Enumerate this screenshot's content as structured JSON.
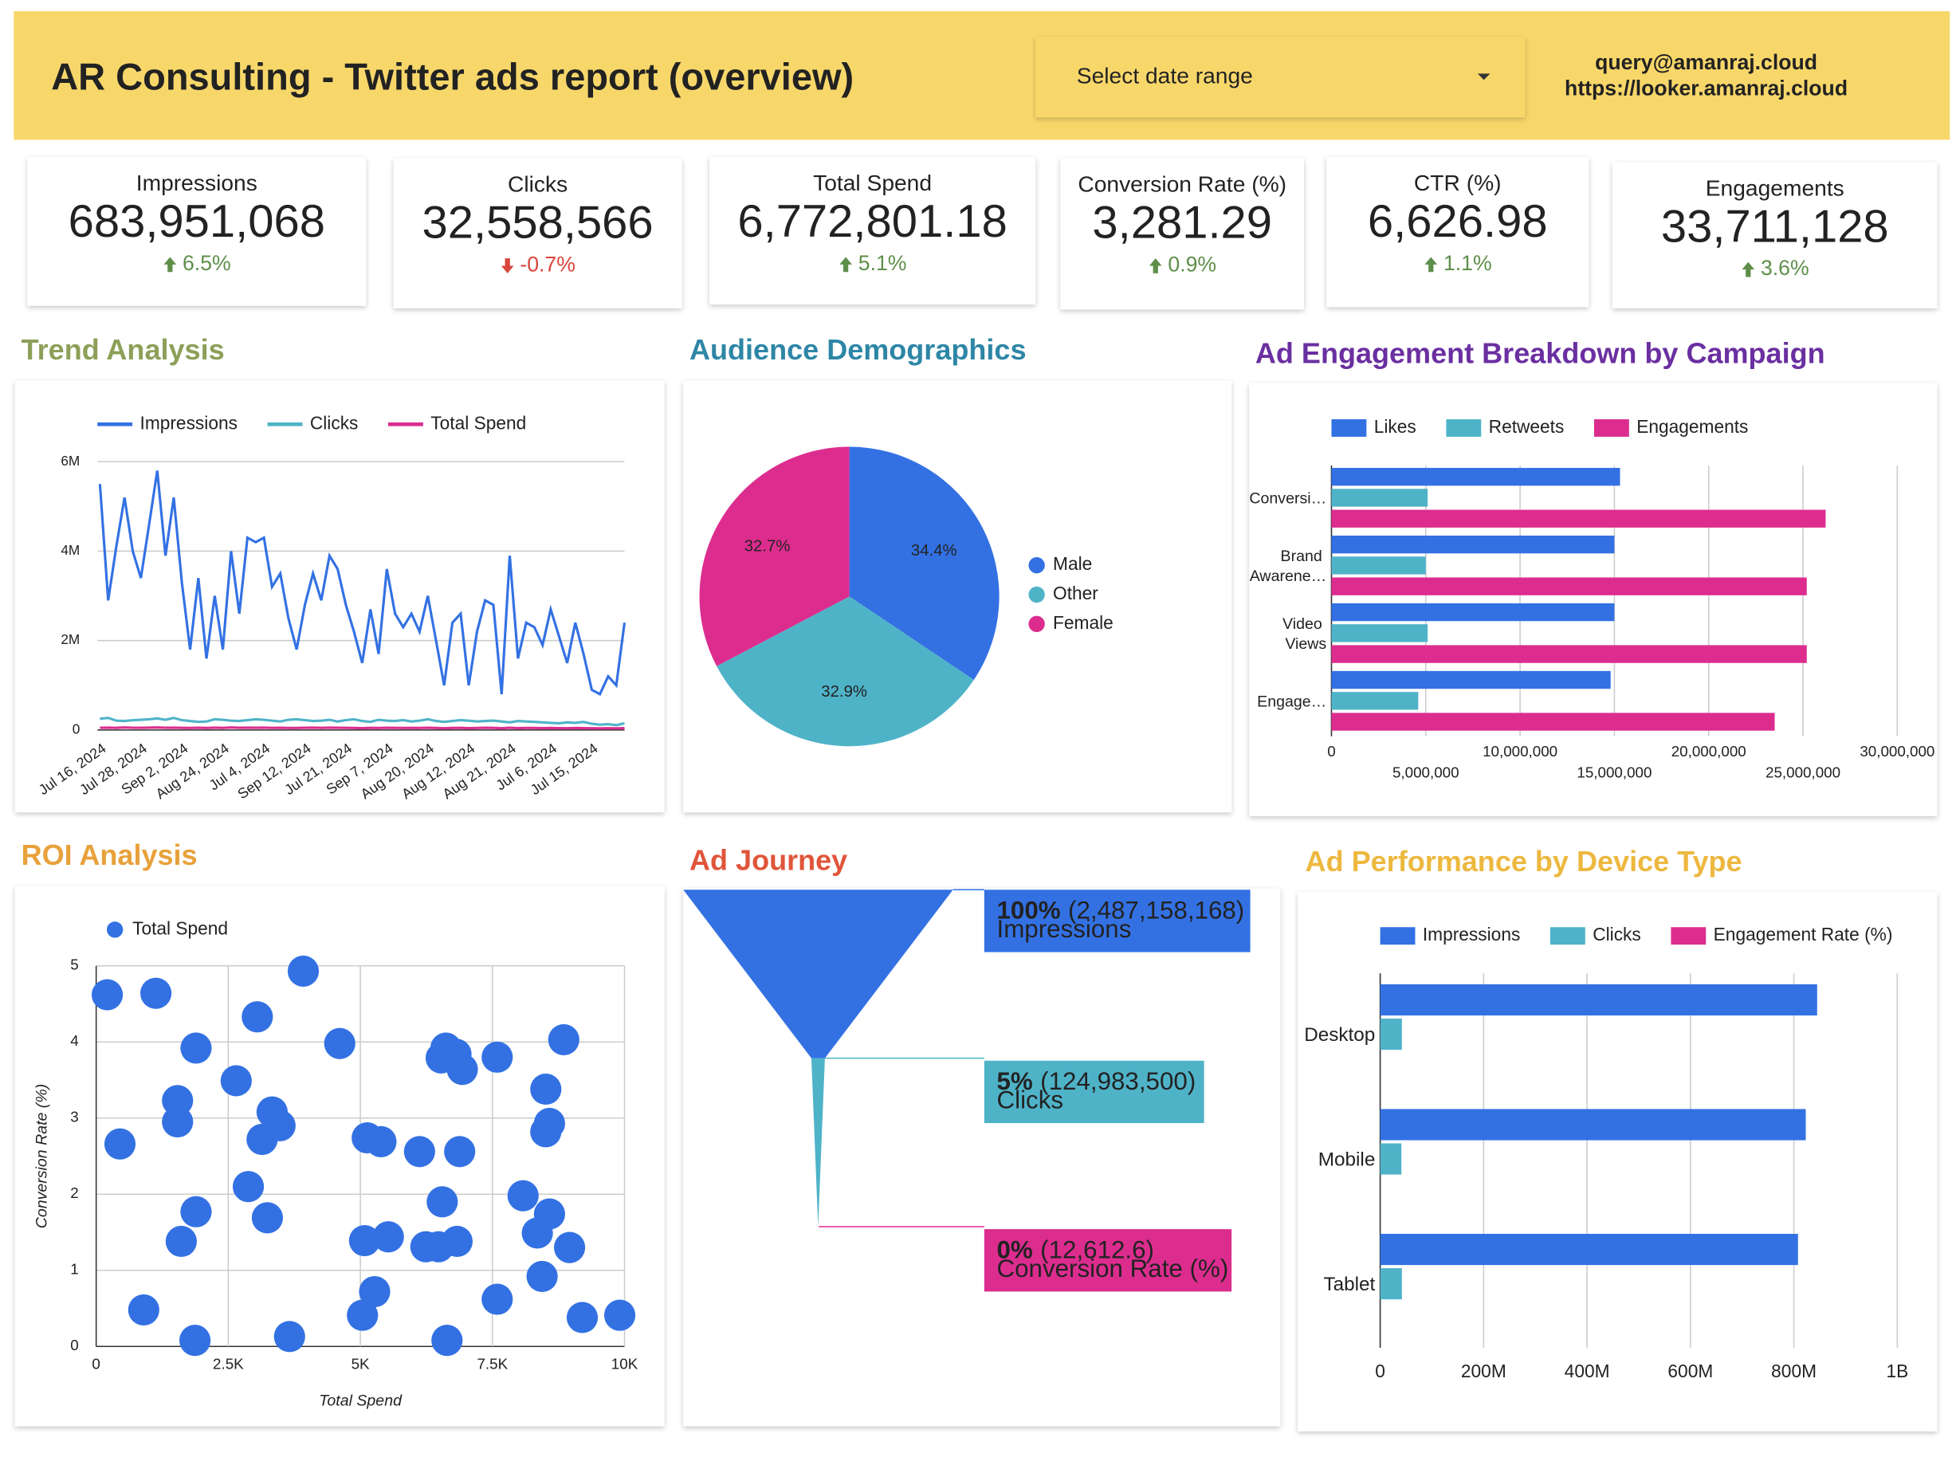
{
  "header": {
    "title": "AR Consulting - Twitter ads report (overview)",
    "date_range": "Select date range",
    "contact": [
      "query@amanraj.cloud",
      "https://looker.amanraj.cloud"
    ]
  },
  "scorecards": [
    {
      "label": "Impressions",
      "value": "683,951,068",
      "change": "6.5%",
      "trend": "up"
    },
    {
      "label": "Clicks",
      "value": "32,558,566",
      "change": "-0.7%",
      "trend": "down"
    },
    {
      "label": "Total Spend",
      "value": "6,772,801.18",
      "change": "5.1%",
      "trend": "up"
    },
    {
      "label": "Conversion Rate (%)",
      "value": "3,281.29",
      "change": "0.9%",
      "trend": "up"
    },
    {
      "label": "CTR (%)",
      "value": "6,626.98",
      "change": "1.1%",
      "trend": "up"
    },
    {
      "label": "Engagements",
      "value": "33,711,128",
      "change": "3.6%",
      "trend": "up"
    }
  ],
  "chart_data": [
    {
      "type": "line",
      "title": "Trend Analysis",
      "title_color": "#8d9f58",
      "grid": true,
      "categories": [
        "Jul 16, 2024",
        null,
        null,
        null,
        null,
        "Jul 28, 2024",
        null,
        null,
        null,
        null,
        "Sep 2, 2024",
        null,
        null,
        null,
        null,
        "Aug 24, 2024",
        null,
        null,
        null,
        null,
        "Jul 4, 2024",
        null,
        null,
        null,
        null,
        "Sep 12, 2024",
        null,
        null,
        null,
        null,
        "Jul 21, 2024",
        null,
        null,
        null,
        null,
        "Sep 7, 2024",
        null,
        null,
        null,
        null,
        "Aug 20, 2024",
        null,
        null,
        null,
        null,
        "Aug 12, 2024",
        null,
        null,
        null,
        null,
        "Aug 21, 2024",
        null,
        null,
        null,
        null,
        "Jul 6, 2024",
        null,
        null,
        null,
        null,
        "Jul 15, 2024",
        null,
        null,
        null,
        null
      ],
      "ylim": [
        0,
        6000000
      ],
      "yticks": [
        0,
        {
          "value": 2000000,
          "label": "2M"
        },
        {
          "value": 4000000,
          "label": "4M"
        },
        {
          "value": 6000000,
          "label": "6M"
        }
      ],
      "series": [
        {
          "name": "Impressions",
          "color": "#3371e3",
          "values": [
            5500000,
            2900000,
            4100000,
            5200000,
            4000000,
            3400000,
            4600000,
            5800000,
            3900000,
            5200000,
            3300000,
            1800000,
            3400000,
            1600000,
            3000000,
            1800000,
            4000000,
            2600000,
            4300000,
            4200000,
            4300000,
            3200000,
            3500000,
            2500000,
            1800000,
            2800000,
            3500000,
            2900000,
            3900000,
            3600000,
            2800000,
            2200000,
            1500000,
            2700000,
            1700000,
            3600000,
            2600000,
            2300000,
            2600000,
            2200000,
            3000000,
            2000000,
            1000000,
            2400000,
            2600000,
            1000000,
            2200000,
            2900000,
            2800000,
            800000,
            3900000,
            1600000,
            2400000,
            2300000,
            1900000,
            2700000,
            2100000,
            1500000,
            2400000,
            1700000,
            900000,
            800000,
            1200000,
            1000000,
            2400000
          ]
        },
        {
          "name": "Clicks",
          "color": "#4fb3c8",
          "values": [
            250000,
            270000,
            210000,
            200000,
            220000,
            230000,
            240000,
            260000,
            230000,
            270000,
            220000,
            200000,
            180000,
            190000,
            240000,
            230000,
            210000,
            200000,
            220000,
            240000,
            230000,
            210000,
            190000,
            230000,
            240000,
            220000,
            200000,
            210000,
            230000,
            190000,
            220000,
            240000,
            200000,
            180000,
            230000,
            210000,
            200000,
            220000,
            190000,
            210000,
            240000,
            200000,
            180000,
            200000,
            220000,
            210000,
            190000,
            200000,
            210000,
            190000,
            170000,
            200000,
            190000,
            180000,
            170000,
            160000,
            150000,
            170000,
            160000,
            180000,
            140000,
            120000,
            130000,
            110000,
            150000
          ]
        },
        {
          "name": "Total Spend",
          "color": "#dc2d8f",
          "values": [
            50000,
            52000,
            48000,
            55000,
            51000,
            49000,
            53000,
            56000,
            50000,
            54000,
            47000,
            45000,
            50000,
            46000,
            52000,
            48000,
            55000,
            49000,
            53000,
            51000,
            54000,
            47000,
            50000,
            46000,
            44000,
            49000,
            52000,
            48000,
            53000,
            50000,
            47000,
            45000,
            43000,
            48000,
            44000,
            51000,
            47000,
            46000,
            48000,
            45000,
            50000,
            44000,
            40000,
            46000,
            48000,
            41000,
            45000,
            49000,
            47000,
            39000,
            50000,
            42000,
            45000,
            44000,
            42000,
            46000,
            43000,
            40000,
            44000,
            41000,
            38000,
            36000,
            39000,
            37000,
            42000
          ]
        }
      ]
    },
    {
      "type": "pie",
      "title": "Audience Demographics",
      "title_color": "#2e86a6",
      "categories": [
        "Male",
        "Other",
        "Female"
      ],
      "values": [
        34.4,
        32.9,
        32.7
      ],
      "value_labels": [
        "34.4%",
        "32.9%",
        "32.7%"
      ],
      "colors": [
        "#3371e3",
        "#4fb3c8",
        "#dc2d8f"
      ]
    },
    {
      "type": "hbar",
      "title": "Ad Engagement Breakdown by Campaign",
      "title_color": "#6a2fa0",
      "grid": true,
      "categories": [
        "Conversi…",
        "Brand Awarene…",
        "Video Views",
        "Engage…"
      ],
      "xlim": [
        0,
        30000000
      ],
      "xticks": [
        0,
        {
          "value": 5000000,
          "label": "5,000,000"
        },
        {
          "value": 10000000,
          "label": "10,000,000"
        },
        {
          "value": 15000000,
          "label": "15,000,000"
        },
        {
          "value": 20000000,
          "label": "20,000,000"
        },
        {
          "value": 25000000,
          "label": "25,000,000"
        },
        {
          "value": 30000000,
          "label": "30,000,000"
        }
      ],
      "series": [
        {
          "name": "Likes",
          "color": "#3371e3",
          "values": [
            15300000,
            15000000,
            15000000,
            14800000
          ]
        },
        {
          "name": "Retweets",
          "color": "#4fb3c8",
          "values": [
            5100000,
            5000000,
            5100000,
            4600000
          ]
        },
        {
          "name": "Engagements",
          "color": "#dc2d8f",
          "values": [
            26200000,
            25200000,
            25200000,
            23500000
          ]
        }
      ]
    },
    {
      "type": "scatter",
      "title": "ROI Analysis",
      "title_color": "#e8a13a",
      "grid": true,
      "x_label": "Total Spend",
      "y_label": "Conversion Rate (%)",
      "xlim": [
        0,
        10000
      ],
      "ylim": [
        0,
        5
      ],
      "xticks": [
        0,
        {
          "value": 2500,
          "label": "2.5K"
        },
        {
          "value": 5000,
          "label": "5K"
        },
        {
          "value": 7500,
          "label": "7.5K"
        },
        {
          "value": 10000,
          "label": "10K"
        }
      ],
      "yticks": [
        0,
        1,
        2,
        3,
        4,
        5
      ],
      "series": [
        {
          "name": "Total Spend",
          "color": "#3371e3",
          "x": [
            210,
            1130,
            3920,
            3050,
            1890,
            4610,
            6620,
            6530,
            6810,
            6930,
            7590,
            8850,
            2650,
            1540,
            3330,
            1540,
            3480,
            3140,
            8510,
            8580,
            8510,
            450,
            5130,
            5390,
            6120,
            6880,
            2880,
            6550,
            1890,
            8080,
            8580,
            3240,
            1610,
            5080,
            5530,
            6240,
            6480,
            6830,
            8350,
            8960,
            8440,
            5270,
            7590,
            5040,
            900,
            9200,
            9910,
            1870,
            3660,
            6640
          ],
          "values": [
            4.62,
            4.64,
            4.93,
            4.33,
            3.92,
            3.98,
            3.92,
            3.79,
            3.84,
            3.64,
            3.8,
            4.03,
            3.49,
            3.23,
            3.08,
            2.95,
            2.9,
            2.72,
            3.38,
            2.93,
            2.82,
            2.66,
            2.74,
            2.69,
            2.56,
            2.56,
            2.1,
            1.9,
            1.77,
            1.98,
            1.74,
            1.69,
            1.38,
            1.39,
            1.44,
            1.31,
            1.31,
            1.38,
            1.49,
            1.3,
            0.92,
            0.72,
            0.62,
            0.41,
            0.48,
            0.38,
            0.41,
            0.08,
            0.13,
            0.08
          ]
        }
      ]
    },
    {
      "type": "funnel",
      "title": "Ad Journey",
      "title_color": "#e0553a",
      "categories": [
        "Impressions",
        "Clicks",
        "Conversion Rate (%)"
      ],
      "values": [
        2487158168,
        124983500,
        12612.6
      ],
      "value_labels": [
        "(2,487,158,168)",
        "(124,983,500)",
        "(12,612.6)"
      ],
      "percent_labels": [
        "100%",
        "5%",
        "0%"
      ],
      "colors": [
        "#3371e3",
        "#4fb3c8",
        "#dc2d8f"
      ]
    },
    {
      "type": "hbar",
      "title": "Ad Performance by Device Type",
      "title_color": "#edb83f",
      "grid": true,
      "categories": [
        "Desktop",
        "Mobile",
        "Tablet"
      ],
      "xlim": [
        0,
        1000000000
      ],
      "xticks": [
        0,
        {
          "value": 200000000,
          "label": "200M"
        },
        {
          "value": 400000000,
          "label": "400M"
        },
        {
          "value": 600000000,
          "label": "600M"
        },
        {
          "value": 800000000,
          "label": "800M"
        },
        {
          "value": 1000000000,
          "label": "1B"
        }
      ],
      "series": [
        {
          "name": "Impressions",
          "color": "#3371e3",
          "values": [
            845000000,
            823000000,
            808000000
          ]
        },
        {
          "name": "Clicks",
          "color": "#4fb3c8",
          "values": [
            42000000,
            41000000,
            42000000
          ]
        },
        {
          "name": "Engagement Rate (%)",
          "color": "#dc2d8f",
          "values": [
            0,
            0,
            0
          ]
        }
      ]
    }
  ]
}
